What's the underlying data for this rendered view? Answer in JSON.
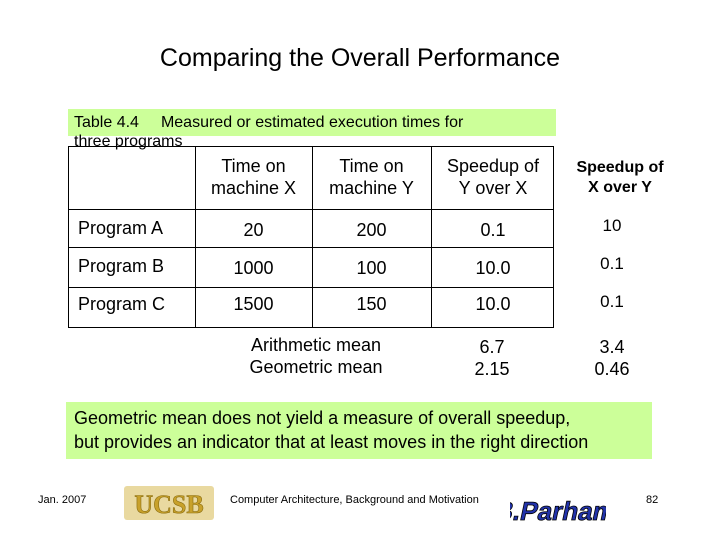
{
  "title": "Comparing the Overall Performance",
  "caption": {
    "label": "Table 4.4",
    "text": "Measured or estimated execution times for",
    "text2": "three programs"
  },
  "table": {
    "headers": [
      [
        "Time on",
        "machine X"
      ],
      [
        "Time on",
        "machine Y"
      ],
      [
        "Speedup of",
        "Y over X"
      ]
    ],
    "extra_header": [
      "Speedup of",
      "X over Y"
    ],
    "rows": [
      {
        "label": "Program A",
        "x": "20",
        "y": "200",
        "speedup_yx": "0.1",
        "speedup_xy": "10"
      },
      {
        "label": "Program B",
        "x": "1000",
        "y": "100",
        "speedup_yx": "10.0",
        "speedup_xy": "0.1"
      },
      {
        "label": "Program C",
        "x": "1500",
        "y": "150",
        "speedup_yx": "10.0",
        "speedup_xy": "0.1"
      }
    ],
    "means": {
      "arith_label": "Arithmetic mean",
      "geo_label": "Geometric mean",
      "arith_yx": "6.7",
      "geo_yx": "2.15",
      "arith_xy": "3.4",
      "geo_xy": "0.46"
    }
  },
  "note": {
    "line1": "Geometric mean does not yield a measure of overall speedup,",
    "line2": "but provides an indicator that at least moves in the right direction"
  },
  "footer": {
    "date": "Jan. 2007",
    "logo": "UCSB",
    "course": "Computer Architecture, Background and Motivation",
    "author": "B. Parhami",
    "page": "82"
  },
  "colors": {
    "highlight": "#ccff99",
    "logo_gold": "#c8a12a",
    "author_blue": "#2233aa"
  }
}
